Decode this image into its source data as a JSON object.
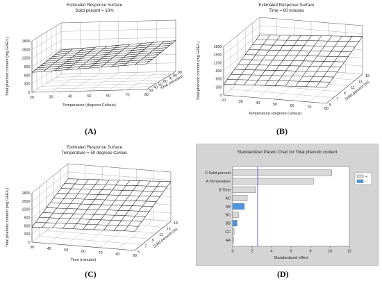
{
  "chart_data": [
    {
      "id": "A",
      "type": "surface",
      "panel_label": "(A)",
      "title": "Estimated Response Surface",
      "subtitle": "Solid percent = 10%",
      "xlabel": "Temperature (degrees Celsius)",
      "ylabel": "Time (minutes)",
      "zlabel": "Total phenolic content (mg GAE/L)",
      "x_ticks": [
        "20",
        "30",
        "40",
        "50",
        "60",
        "70",
        "80"
      ],
      "y_ticks": [
        "30",
        "40",
        "50",
        "60",
        "70",
        "80",
        "90"
      ],
      "z_ticks": [
        "0",
        "300",
        "600",
        "900",
        "1200",
        "1500",
        "1800"
      ],
      "xlim": [
        20,
        80
      ],
      "ylim": [
        30,
        90
      ],
      "zlim": [
        0,
        1800
      ],
      "surface_corners": {
        "x_min_y_min": 700,
        "x_max_y_min": 900,
        "x_min_y_max": 850,
        "x_max_y_max": 1080
      }
    },
    {
      "id": "B",
      "type": "surface",
      "panel_label": "(B)",
      "title": "Estimated Response Surface",
      "subtitle": "Time = 60 minutes",
      "xlabel": "Temperature (degrees Celsius)",
      "ylabel": "Solid percent (%)",
      "zlabel": "Total phenolic content (mg GAE/L)",
      "x_ticks": [
        "20",
        "30",
        "40",
        "50",
        "60",
        "70",
        "80"
      ],
      "y_ticks": [
        "5",
        "7",
        "9",
        "11",
        "13",
        "15"
      ],
      "z_ticks": [
        "0",
        "300",
        "600",
        "900",
        "1200",
        "1500",
        "1800"
      ],
      "xlim": [
        20,
        80
      ],
      "ylim": [
        5,
        15
      ],
      "zlim": [
        0,
        1800
      ],
      "surface_corners": {
        "x_min_y_min": 400,
        "x_max_y_min": 600,
        "x_min_y_max": 1150,
        "x_max_y_max": 1400
      }
    },
    {
      "id": "C",
      "type": "surface",
      "panel_label": "(C)",
      "title": "Estimated Response Surface",
      "subtitle": "Temperature = 50 degrees Celsius",
      "xlabel": "Time (minutes)",
      "ylabel": "Solid percent (%)",
      "zlabel": "Total phenolic content (mg GAE/L)",
      "x_ticks": [
        "30",
        "40",
        "50",
        "60",
        "70",
        "80",
        "90"
      ],
      "y_ticks": [
        "5",
        "7",
        "9",
        "11",
        "13",
        "15"
      ],
      "z_ticks": [
        "0",
        "300",
        "600",
        "900",
        "1200",
        "1500",
        "1800"
      ],
      "xlim": [
        30,
        90
      ],
      "ylim": [
        5,
        15
      ],
      "zlim": [
        0,
        1800
      ],
      "surface_corners": {
        "x_min_y_min": 550,
        "x_max_y_min": 700,
        "x_min_y_max": 1250,
        "x_max_y_max": 1450
      }
    },
    {
      "id": "D",
      "type": "bar",
      "orientation": "horizontal",
      "panel_label": "(D)",
      "title": "Standardized Pareto Chart for Total phenolic content",
      "xlabel": "Standardized effect",
      "categories": [
        "C:Solid percent",
        "A:Temperature",
        "B:Time",
        "AC",
        "AB",
        "BC",
        "BB",
        "CC",
        "AA"
      ],
      "values": [
        10.2,
        8.3,
        2.4,
        1.5,
        1.2,
        0.6,
        0.45,
        0.15,
        0.1
      ],
      "signs": [
        "+",
        "+",
        "+",
        "+",
        "-",
        "+",
        "-",
        "+",
        "+"
      ],
      "xlim": [
        0,
        12
      ],
      "x_ticks": [
        "0",
        "2",
        "4",
        "6",
        "8",
        "10",
        "12"
      ],
      "reference_line": 2.57,
      "legend": [
        "+",
        "-"
      ],
      "legend_position": "top-right",
      "colors": {
        "positive": "#d9d9d9",
        "negative": "#4f95e0",
        "reference": "#2b2bd6",
        "background": "#d4d4d4",
        "plot": "#ffffff"
      }
    }
  ]
}
